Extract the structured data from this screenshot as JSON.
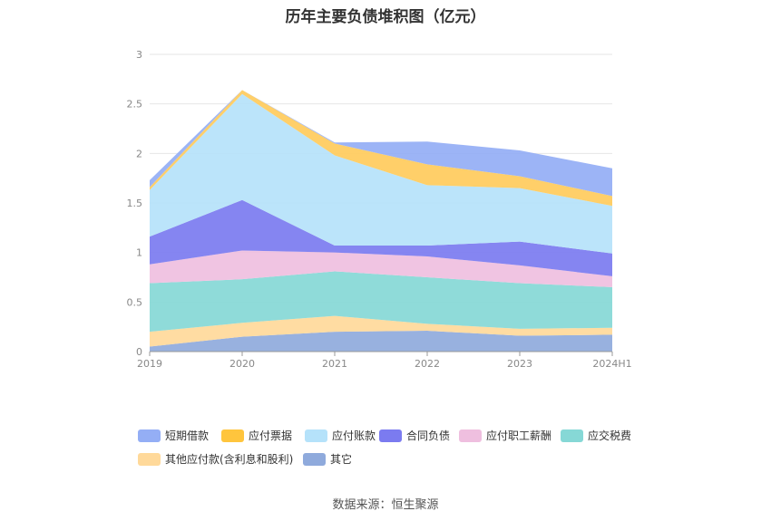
{
  "chart_data": {
    "type": "area",
    "stacked": true,
    "title": "历年主要负债堆积图（亿元）",
    "categories": [
      "2019",
      "2020",
      "2021",
      "2022",
      "2023",
      "2024H1"
    ],
    "ylim": [
      0,
      3
    ],
    "yticks": [
      "0",
      "0.5",
      "1",
      "1.5",
      "2",
      "2.5",
      "3"
    ],
    "grid": true,
    "legend_position": "bottom",
    "series": [
      {
        "name": "其它",
        "color": "#8faadc",
        "values": [
          0.05,
          0.15,
          0.2,
          0.21,
          0.16,
          0.17
        ]
      },
      {
        "name": "其他应付款(含利息和股利)",
        "color": "#ffd99a",
        "values": [
          0.15,
          0.14,
          0.16,
          0.07,
          0.07,
          0.07
        ]
      },
      {
        "name": "应交税费",
        "color": "#86d8d6",
        "values": [
          0.49,
          0.44,
          0.45,
          0.47,
          0.46,
          0.41
        ]
      },
      {
        "name": "应付职工薪酬",
        "color": "#efbfdf",
        "values": [
          0.19,
          0.29,
          0.19,
          0.21,
          0.18,
          0.11
        ]
      },
      {
        "name": "合同负债",
        "color": "#7b7bf0",
        "values": [
          0.28,
          0.51,
          0.07,
          0.11,
          0.24,
          0.23
        ]
      },
      {
        "name": "应付账款",
        "color": "#b5e2fa",
        "values": [
          0.47,
          1.07,
          0.91,
          0.61,
          0.54,
          0.48
        ]
      },
      {
        "name": "应付票据",
        "color": "#ffcb5c",
        "values": [
          0.03,
          0.04,
          0.12,
          0.21,
          0.12,
          0.1
        ]
      },
      {
        "name": "短期借款",
        "color": "#94aef5",
        "values": [
          0.07,
          0.0,
          0.01,
          0.23,
          0.26,
          0.28
        ]
      }
    ]
  },
  "legend": [
    {
      "label": "短期借款",
      "color": "#94aef5"
    },
    {
      "label": "应付票据",
      "color": "#ffc53d"
    },
    {
      "label": "应付账款",
      "color": "#b5e2fa"
    },
    {
      "label": "合同负债",
      "color": "#7b7bf0"
    },
    {
      "label": "应付职工薪酬",
      "color": "#efbfdf"
    },
    {
      "label": "应交税费",
      "color": "#86d8d6"
    },
    {
      "label": "其他应付款(含利息和股利)",
      "color": "#ffd99a"
    },
    {
      "label": "其它",
      "color": "#8faadc"
    }
  ],
  "source": "数据来源：恒生聚源"
}
